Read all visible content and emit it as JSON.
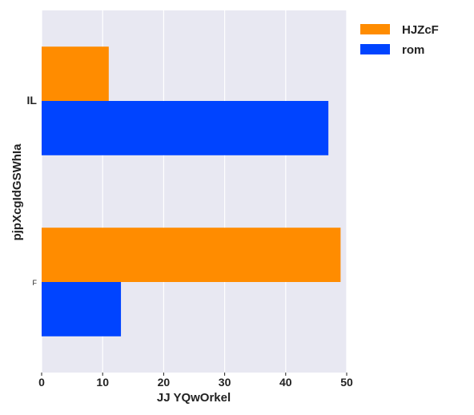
{
  "chart_data": {
    "type": "bar",
    "orientation": "horizontal",
    "categories": [
      "IL",
      "F"
    ],
    "series": [
      {
        "name": "HJZcF",
        "values": [
          11,
          49
        ],
        "color": "#ff8c00"
      },
      {
        "name": "rom",
        "values": [
          47,
          13
        ],
        "color": "#0044ff"
      }
    ],
    "xlabel": "JJ YQwOrkel",
    "ylabel": "pjpXcgIdGSWhIa",
    "xlim": [
      0,
      50
    ],
    "xticks": [
      "0",
      "10",
      "20",
      "30",
      "40",
      "50"
    ],
    "grid": true,
    "plot_background": "#e8e8f2",
    "legend_position": "top-right"
  }
}
